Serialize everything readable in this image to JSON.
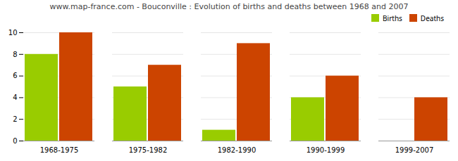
{
  "chart_data": {
    "type": "bar",
    "title": "www.map-france.com - Bouconville : Evolution of births and deaths between 1968 and 2007",
    "categories": [
      "1968-1975",
      "1975-1982",
      "1982-1990",
      "1990-1999",
      "1999-2007"
    ],
    "series": [
      {
        "name": "Births",
        "color": "#99cc00",
        "values": [
          8,
          5,
          1,
          4,
          0
        ]
      },
      {
        "name": "Deaths",
        "color": "#cc4400",
        "values": [
          10,
          7,
          9,
          6,
          4
        ]
      }
    ],
    "ylim": [
      0,
      10
    ],
    "yticks": [
      0,
      2,
      4,
      6,
      8,
      10
    ],
    "grid": true,
    "legend": "upper right"
  }
}
